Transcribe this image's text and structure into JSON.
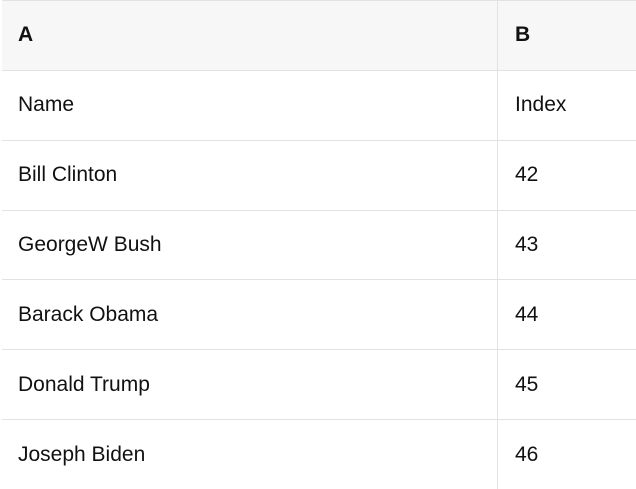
{
  "table": {
    "header": {
      "a": "A",
      "b": "B"
    },
    "rows": [
      {
        "a": "Name",
        "b": "Index"
      },
      {
        "a": "Bill Clinton",
        "b": "42"
      },
      {
        "a": "GeorgeW Bush",
        "b": "43"
      },
      {
        "a": "Barack Obama",
        "b": "44"
      },
      {
        "a": "Donald Trump",
        "b": "45"
      },
      {
        "a": "Joseph Biden",
        "b": "46"
      }
    ]
  },
  "colors": {
    "header_bg": "#f7f7f7",
    "border": "#e2e2e2",
    "text": "#111111",
    "background": "#ffffff"
  }
}
